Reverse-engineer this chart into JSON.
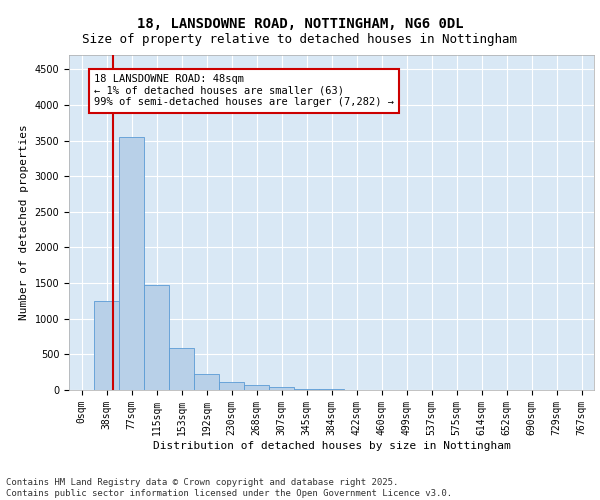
{
  "title_line1": "18, LANSDOWNE ROAD, NOTTINGHAM, NG6 0DL",
  "title_line2": "Size of property relative to detached houses in Nottingham",
  "xlabel": "Distribution of detached houses by size in Nottingham",
  "ylabel": "Number of detached properties",
  "bar_labels": [
    "0sqm",
    "38sqm",
    "77sqm",
    "115sqm",
    "153sqm",
    "192sqm",
    "230sqm",
    "268sqm",
    "307sqm",
    "345sqm",
    "384sqm",
    "422sqm",
    "460sqm",
    "499sqm",
    "537sqm",
    "575sqm",
    "614sqm",
    "652sqm",
    "690sqm",
    "729sqm",
    "767sqm"
  ],
  "bar_values": [
    5,
    1250,
    3550,
    1480,
    590,
    225,
    110,
    70,
    40,
    20,
    10,
    5,
    2,
    2,
    1,
    1,
    0,
    0,
    0,
    0,
    0
  ],
  "bar_color": "#b8d0e8",
  "bar_edge_color": "#5b9bd5",
  "background_color": "#d9e8f5",
  "grid_color": "#ffffff",
  "vline_x": 1.26,
  "vline_color": "#cc0000",
  "annotation_text": "18 LANSDOWNE ROAD: 48sqm\n← 1% of detached houses are smaller (63)\n99% of semi-detached houses are larger (7,282) →",
  "annotation_box_color": "#ffffff",
  "annotation_box_edge_color": "#cc0000",
  "ylim": [
    0,
    4700
  ],
  "yticks": [
    0,
    500,
    1000,
    1500,
    2000,
    2500,
    3000,
    3500,
    4000,
    4500
  ],
  "footer_text": "Contains HM Land Registry data © Crown copyright and database right 2025.\nContains public sector information licensed under the Open Government Licence v3.0.",
  "title_fontsize": 10,
  "subtitle_fontsize": 9,
  "annotation_fontsize": 7.5,
  "footer_fontsize": 6.5,
  "tick_fontsize": 7,
  "ylabel_fontsize": 8,
  "xlabel_fontsize": 8
}
